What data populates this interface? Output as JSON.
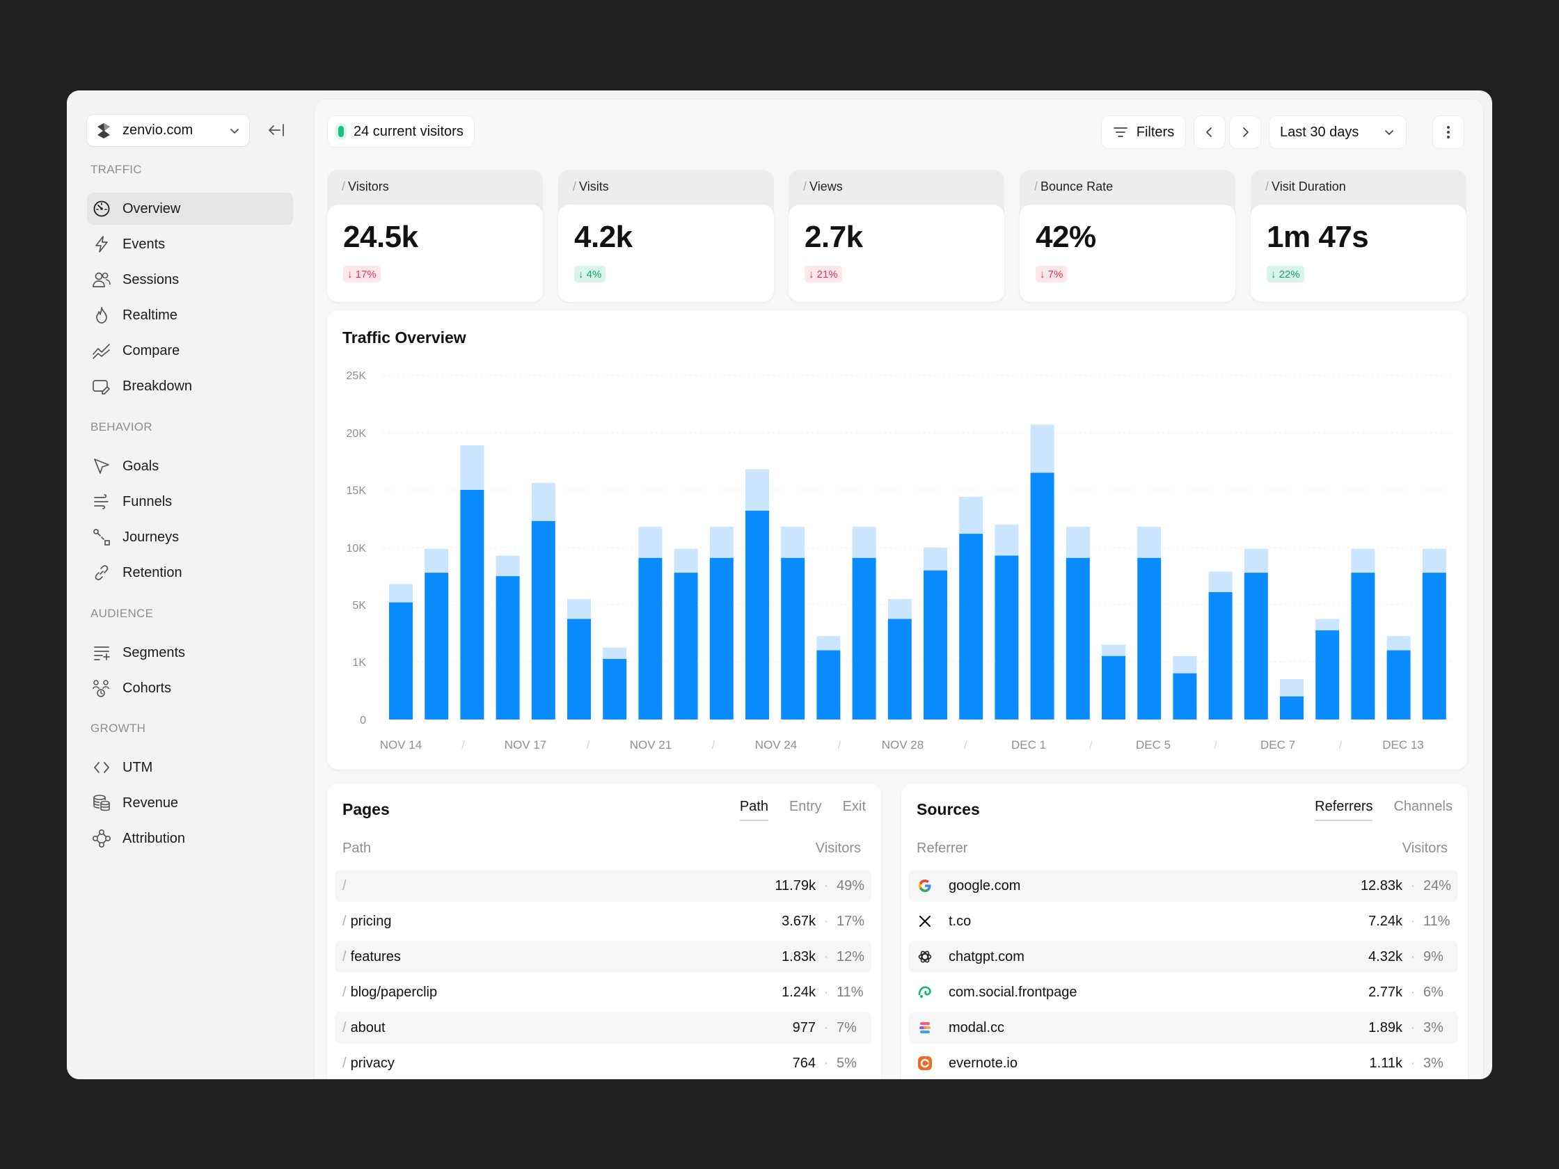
{
  "sidebar": {
    "site": "zenvio.com",
    "sections": [
      {
        "title": "TRAFFIC",
        "items": [
          "Overview",
          "Events",
          "Sessions",
          "Realtime",
          "Compare",
          "Breakdown"
        ]
      },
      {
        "title": "BEHAVIOR",
        "items": [
          "Goals",
          "Funnels",
          "Journeys",
          "Retention"
        ]
      },
      {
        "title": "AUDIENCE",
        "items": [
          "Segments",
          "Cohorts"
        ]
      },
      {
        "title": "GROWTH",
        "items": [
          "UTM",
          "Revenue",
          "Attribution"
        ]
      }
    ],
    "active": "Overview"
  },
  "header": {
    "current_visitors": "24 current visitors",
    "filters_label": "Filters",
    "range_label": "Last 30 days"
  },
  "kpis": [
    {
      "label": "Visitors",
      "value": "24.5k",
      "delta": "17%",
      "direction": "down"
    },
    {
      "label": "Visits",
      "value": "4.2k",
      "delta": "4%",
      "direction": "up"
    },
    {
      "label": "Views",
      "value": "2.7k",
      "delta": "21%",
      "direction": "down"
    },
    {
      "label": "Bounce Rate",
      "value": "42%",
      "delta": "7%",
      "direction": "down"
    },
    {
      "label": "Visit Duration",
      "value": "1m 47s",
      "delta": "22%",
      "direction": "up"
    }
  ],
  "chart_data": {
    "type": "bar",
    "stacked": true,
    "title": "Traffic Overview",
    "y_ticks": [
      "0",
      "1K",
      "5K",
      "10K",
      "15K",
      "20K",
      "25K"
    ],
    "x_labels": [
      "NOV 14",
      "NOV 17",
      "NOV 21",
      "NOV 24",
      "NOV 28",
      "DEC 1",
      "DEC 5",
      "DEC 7",
      "DEC 13"
    ],
    "series": [
      {
        "values": [
          5200,
          7800,
          15000,
          7500,
          12300,
          4000,
          1200,
          9100,
          7800,
          9100,
          13200,
          9100,
          1800,
          9100,
          4000,
          8000,
          11200,
          9300,
          16500,
          9100,
          1400,
          9100,
          800,
          6100,
          7800,
          400,
          3200,
          7800,
          1800,
          7800
        ]
      },
      {
        "values": [
          1600,
          2100,
          3900,
          1800,
          3300,
          1500,
          800,
          2700,
          2100,
          2700,
          3600,
          2700,
          1000,
          2700,
          1500,
          2000,
          3200,
          2700,
          4200,
          2700,
          800,
          2700,
          600,
          1800,
          2100,
          300,
          800,
          2100,
          1000,
          2100
        ]
      }
    ],
    "colors": {
      "primary": "#0a8cff",
      "secondary": "#cce5ff"
    },
    "ylim": [
      0,
      25000
    ],
    "grid": true
  },
  "pages": {
    "title": "Pages",
    "tabs": [
      "Path",
      "Entry",
      "Exit"
    ],
    "active_tab": "Path",
    "col_left": "Path",
    "col_right": "Visitors",
    "rows": [
      {
        "name": "",
        "value": "11.79k",
        "pct": "49%"
      },
      {
        "name": "pricing",
        "value": "3.67k",
        "pct": "17%"
      },
      {
        "name": "features",
        "value": "1.83k",
        "pct": "12%"
      },
      {
        "name": "blog/paperclip",
        "value": "1.24k",
        "pct": "11%"
      },
      {
        "name": "about",
        "value": "977",
        "pct": "7%"
      },
      {
        "name": "privacy",
        "value": "764",
        "pct": "5%"
      }
    ]
  },
  "sources": {
    "title": "Sources",
    "tabs": [
      "Referrers",
      "Channels"
    ],
    "active_tab": "Referrers",
    "col_left": "Referrer",
    "col_right": "Visitors",
    "rows": [
      {
        "name": "google.com",
        "icon": "google-icon",
        "value": "12.83k",
        "pct": "24%"
      },
      {
        "name": "t.co",
        "icon": "x-icon",
        "value": "7.24k",
        "pct": "11%"
      },
      {
        "name": "chatgpt.com",
        "icon": "chatgpt-icon",
        "value": "4.32k",
        "pct": "9%"
      },
      {
        "name": "com.social.frontpage",
        "icon": "frontpage-icon",
        "value": "2.77k",
        "pct": "6%"
      },
      {
        "name": "modal.cc",
        "icon": "modal-icon",
        "value": "1.89k",
        "pct": "3%"
      },
      {
        "name": "evernote.io",
        "icon": "evernote-icon",
        "value": "1.11k",
        "pct": "3%"
      }
    ]
  }
}
